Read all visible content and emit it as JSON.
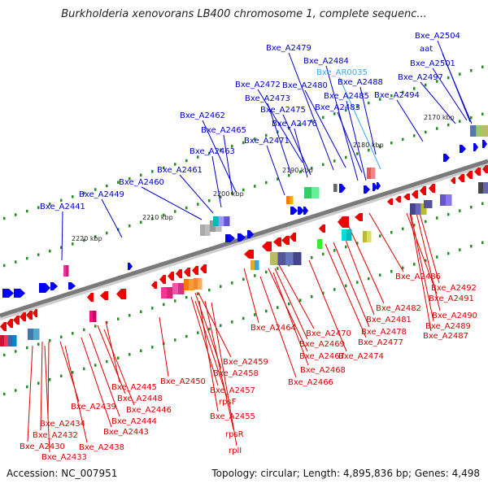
{
  "title": "Burkholderia xenovorans LB400 chromosome 1, complete sequenc...",
  "footer": {
    "accession": "Accession: NC_007951",
    "summary": "Topology: circular; Length: 4,895,836 bp; Genes: 4,498"
  },
  "colors": {
    "backbone": "#7a7a7a",
    "forward_gene": "#0000ee",
    "reverse_gene": "#ee0000",
    "forward_label": "#0000cc",
    "reverse_label": "#dd0000",
    "highlight_label": "#33aaff",
    "tick_dot": "#2a8a2a"
  },
  "ticks": [
    "2170 kbp",
    "2180 kbp",
    "2190 kbp",
    "2200 kbp",
    "2210 kbp",
    "2220 kbp"
  ],
  "top_labels": [
    "Bxe_A2504",
    "aat",
    "Bxe_A2479",
    "Bxe_A2484",
    "Bxe_AR0035",
    "Bxe_A2501",
    "Bxe_A2497",
    "Bxe_A2472",
    "Bxe_A2480",
    "Bxe_A2488",
    "Bxe_A2473",
    "Bxe_A2485",
    "Bxe_A2494",
    "Bxe_A2475",
    "Bxe_A2483",
    "Bxe_A2462",
    "Bxe_A2476",
    "Bxe_A2465",
    "Bxe_A2471",
    "Bxe_A2463",
    "Bxe_A2461",
    "Bxe_A2460",
    "Bxe_A2449",
    "Bxe_A2441"
  ],
  "bottom_labels": [
    "Bxe_A2486",
    "Bxe_A2492",
    "Bxe_A2491",
    "Bxe_A2482",
    "Bxe_A2490",
    "Bxe_A2481",
    "Bxe_A2489",
    "Bxe_A2478",
    "Bxe_A2487",
    "Bxe_A2464",
    "Bxe_A2470",
    "Bxe_A2477",
    "Bxe_A2469",
    "Bxe_A2467",
    "Bxe_A2474",
    "Bxe_A2468",
    "Bxe_A2466",
    "Bxe_A2459",
    "Bxe_A2458",
    "Bxe_A2450",
    "Bxe_A2457",
    "Bxe_A2445",
    "rpsF",
    "Bxe_A2448",
    "Bxe_A2439",
    "Bxe_A2446",
    "Bxe_A2455",
    "Bxe_A2444",
    "Bxe_A2434",
    "Bxe_A2443",
    "Bxe_A2432",
    "rpsR",
    "Bxe_A2430",
    "Bxe_A2438",
    "rplI",
    "Bxe_A2433"
  ]
}
